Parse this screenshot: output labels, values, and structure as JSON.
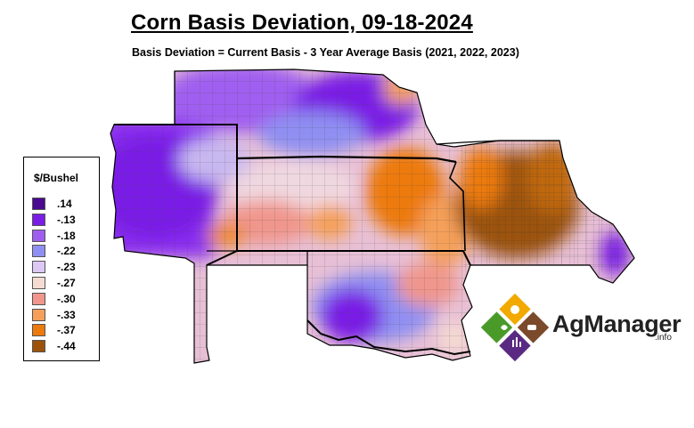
{
  "title": "Corn Basis Deviation, 09-18-2024",
  "subtitle": "Basis Deviation = Current Basis - 3 Year Average Basis (2021, 2022, 2023)",
  "legend": {
    "title": "$/Bushel",
    "items": [
      {
        "label": ".14",
        "color": "#4b0a8f"
      },
      {
        "label": "-.13",
        "color": "#7a1ee6"
      },
      {
        "label": "-.18",
        "color": "#a05ef0"
      },
      {
        "label": "-.22",
        "color": "#8f8ff2"
      },
      {
        "label": "-.23",
        "color": "#dcc8f5"
      },
      {
        "label": "-.27",
        "color": "#f5dcd2"
      },
      {
        "label": "-.30",
        "color": "#f0968c"
      },
      {
        "label": "-.33",
        "color": "#f5a05a"
      },
      {
        "label": "-.37",
        "color": "#ed7a0c"
      },
      {
        "label": "-.44",
        "color": "#9c520a"
      }
    ]
  },
  "logo": {
    "name": "AgManager",
    "suffix": ".info"
  }
}
